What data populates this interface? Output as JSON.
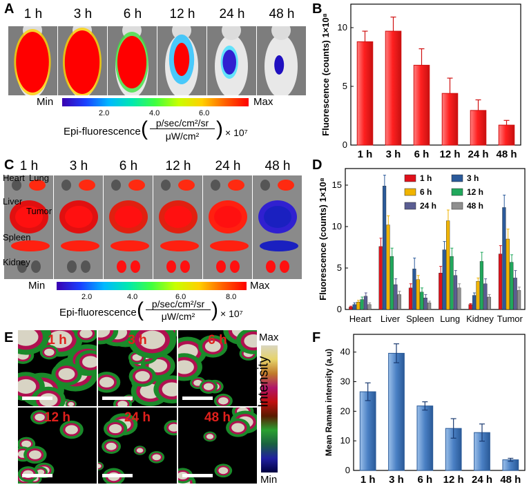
{
  "panels": {
    "A": {
      "letter": "A",
      "times": [
        "1 h",
        "3 h",
        "6 h",
        "12 h",
        "24 h",
        "48 h"
      ],
      "cbar_min": "Min",
      "cbar_max": "Max",
      "cbar_ticks": [
        "2.0",
        "4.0",
        "6.0"
      ],
      "unit_prefix": "Epi-fluorescence",
      "unit_num": "p/sec/cm²/sr",
      "unit_den": "μW/cm²",
      "unit_scale": "× 10⁷"
    },
    "B": {
      "letter": "B"
    },
    "C": {
      "letter": "C",
      "times": [
        "1 h",
        "3 h",
        "6 h",
        "12 h",
        "24 h",
        "48 h"
      ],
      "organs": [
        "Heart",
        "Lung",
        "Liver",
        "Tumor",
        "Spleen",
        "Kidney"
      ],
      "cbar_min": "Min",
      "cbar_max": "Max",
      "cbar_ticks": [
        "2.0",
        "4.0",
        "6.0",
        "8.0"
      ],
      "unit_prefix": "Epi-fluorescence",
      "unit_num": "p/sec/cm²/sr",
      "unit_den": "μW/cm²",
      "unit_scale": "× 10⁷"
    },
    "D": {
      "letter": "D"
    },
    "E": {
      "letter": "E",
      "times": [
        "1 h",
        "3 h",
        "6 h",
        "12 h",
        "24 h",
        "48 h"
      ],
      "cbar_max": "Max",
      "cbar_min": "Min",
      "cbar_label": "Intensity"
    },
    "F": {
      "letter": "F"
    }
  },
  "chart_data": [
    {
      "id": "B",
      "type": "bar",
      "categories": [
        "1 h",
        "3 h",
        "6 h",
        "12 h",
        "24 h",
        "48 h"
      ],
      "values": [
        8.8,
        9.7,
        6.8,
        4.4,
        2.95,
        1.7
      ],
      "errors": [
        0.9,
        1.2,
        1.4,
        1.3,
        0.9,
        0.4
      ],
      "ylim": [
        0,
        12
      ],
      "yticks": [
        0,
        5,
        10
      ],
      "ylabel": "Fluorescence (counts) 1×10⁸",
      "xlabel": "",
      "color": "#ef2b2b"
    },
    {
      "id": "D",
      "type": "bar",
      "categories": [
        "Heart",
        "Liver",
        "Spleen",
        "Lung",
        "Kidney",
        "Tumor"
      ],
      "series": [
        {
          "name": "1 h",
          "color": "#e0101a",
          "values": [
            0.3,
            7.6,
            2.6,
            4.4,
            0.6,
            6.7
          ],
          "errors": [
            0.1,
            1.0,
            0.5,
            0.8,
            0.1,
            1.0
          ]
        },
        {
          "name": "3 h",
          "color": "#2b5a9a",
          "values": [
            0.6,
            14.9,
            4.9,
            7.2,
            1.7,
            12.3
          ],
          "errors": [
            0.2,
            1.3,
            1.3,
            1.0,
            0.3,
            1.5
          ]
        },
        {
          "name": "6 h",
          "color": "#f0b400",
          "values": [
            0.9,
            10.2,
            3.6,
            10.7,
            3.4,
            8.5
          ],
          "errors": [
            0.2,
            1.1,
            0.5,
            1.3,
            0.4,
            1.2
          ]
        },
        {
          "name": "12 h",
          "color": "#21a85c",
          "values": [
            1.2,
            6.4,
            2.1,
            6.4,
            5.8,
            5.7
          ],
          "errors": [
            0.3,
            1.0,
            0.5,
            1.0,
            1.1,
            0.9
          ]
        },
        {
          "name": "24 h",
          "color": "#5a5d92",
          "values": [
            1.6,
            3.0,
            1.4,
            4.1,
            3.1,
            3.8
          ],
          "errors": [
            0.4,
            0.7,
            0.4,
            0.6,
            0.6,
            0.9
          ]
        },
        {
          "name": "48 h",
          "color": "#8f8f8f",
          "values": [
            0.6,
            1.8,
            0.8,
            2.6,
            1.5,
            2.3
          ],
          "errors": [
            0.2,
            0.4,
            0.2,
            0.5,
            0.3,
            0.4
          ]
        }
      ],
      "ylim": [
        0,
        17
      ],
      "yticks": [
        0,
        5,
        10,
        15
      ],
      "ylabel": "Fluorescence (counts) 1×10⁸",
      "legend": "top-right"
    },
    {
      "id": "F",
      "type": "bar",
      "categories": [
        "1 h",
        "3 h",
        "6 h",
        "12 h",
        "24 h",
        "48 h"
      ],
      "values": [
        26.6,
        39.6,
        21.8,
        14.2,
        12.8,
        3.6
      ],
      "errors": [
        3.0,
        3.2,
        1.4,
        3.3,
        2.9,
        0.5
      ],
      "ylim": [
        0,
        46
      ],
      "yticks": [
        0,
        10,
        20,
        30,
        40
      ],
      "ylabel": "Mean Raman intensity (a.u)",
      "color": "#4a7fc0"
    }
  ]
}
